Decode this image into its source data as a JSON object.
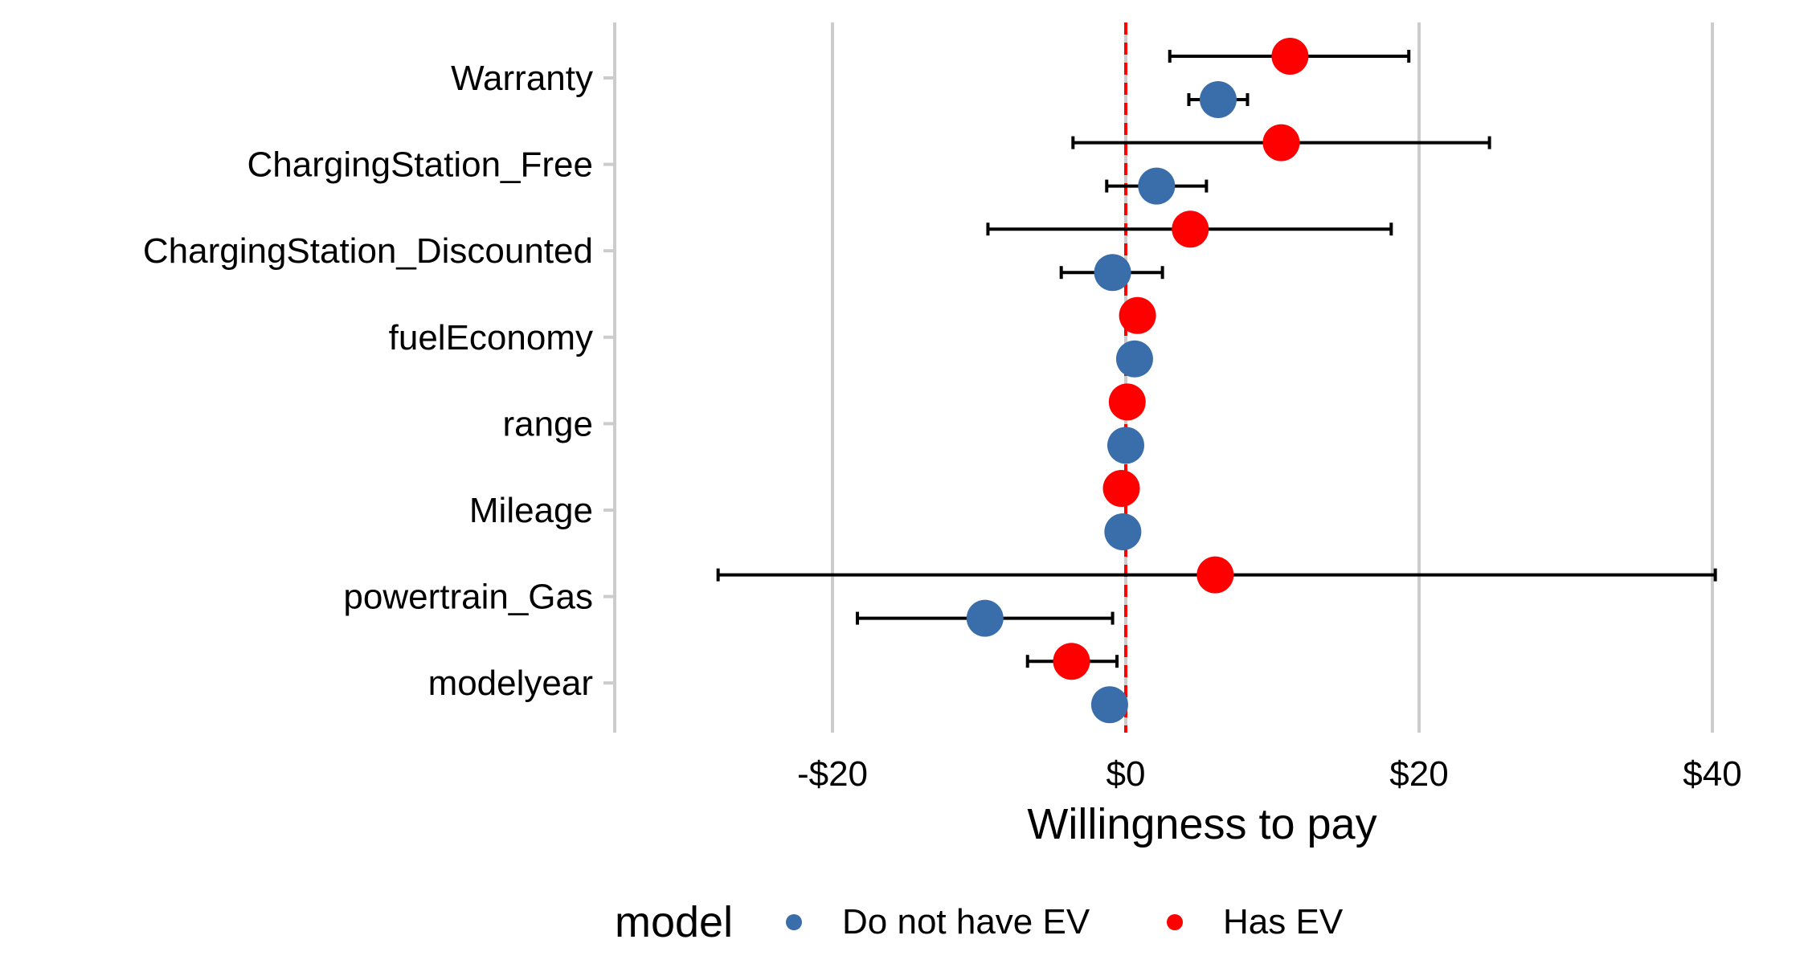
{
  "chart_data": {
    "type": "scatter",
    "subtype": "dot-and-whisker",
    "xlabel": "Willingness to pay",
    "ylabel": "",
    "xlim": [
      -35,
      42
    ],
    "x_ticks": [
      -20,
      0,
      20,
      40
    ],
    "x_tick_labels": [
      "-$20",
      "$0",
      "$20",
      "$40"
    ],
    "reference_line": {
      "x": 0,
      "style": "dashed",
      "color": "#FF0000"
    },
    "grid": "vertical major lines",
    "legend": {
      "title": "model",
      "position": "bottom"
    },
    "categories": [
      "Warranty",
      "ChargingStation_Free",
      "ChargingStation_Discounted",
      "fuelEconomy",
      "range",
      "Mileage",
      "powertrain_Gas",
      "modelyear"
    ],
    "series": [
      {
        "name": "Has EV",
        "color": "#FF0000",
        "estimates": [
          11.2,
          10.6,
          4.4,
          0.8,
          0.1,
          -0.3,
          6.1,
          -3.7
        ],
        "lower": [
          3.0,
          -3.6,
          -9.4,
          null,
          null,
          null,
          -27.8,
          -6.7
        ],
        "upper": [
          19.3,
          24.8,
          18.1,
          null,
          null,
          null,
          40.2,
          -0.6
        ]
      },
      {
        "name": "Do not have EV",
        "color": "#3A6EAA",
        "estimates": [
          6.3,
          2.1,
          -0.9,
          0.6,
          0.0,
          -0.2,
          -9.6,
          -1.1
        ],
        "lower": [
          4.3,
          -1.3,
          -4.4,
          null,
          null,
          null,
          -18.3,
          null
        ],
        "upper": [
          8.3,
          5.5,
          2.5,
          null,
          null,
          null,
          -0.9,
          null
        ]
      }
    ]
  }
}
